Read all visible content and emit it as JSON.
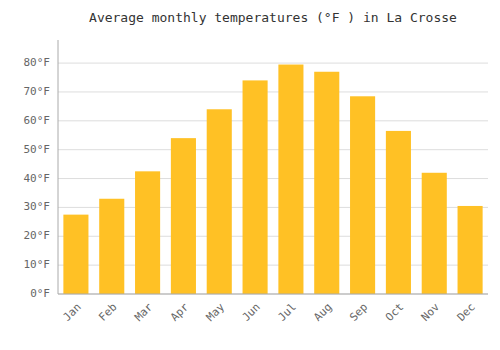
{
  "chart_data": {
    "type": "bar",
    "title": "Average monthly temperatures (°F ) in La Crosse",
    "categories": [
      "Jan",
      "Feb",
      "Mar",
      "Apr",
      "May",
      "Jun",
      "Jul",
      "Aug",
      "Sep",
      "Oct",
      "Nov",
      "Dec"
    ],
    "values": [
      27.5,
      33.0,
      42.5,
      54.0,
      64.0,
      74.0,
      79.5,
      77.0,
      68.5,
      56.5,
      42.0,
      30.5
    ],
    "color": "#FFC125",
    "ylim": [
      0,
      88
    ],
    "yticks": [
      {
        "value": 0,
        "label": "0°F"
      },
      {
        "value": 10,
        "label": "10°F"
      },
      {
        "value": 20,
        "label": "20°F"
      },
      {
        "value": 30,
        "label": "30°F"
      },
      {
        "value": 40,
        "label": "40°F"
      },
      {
        "value": 50,
        "label": "50°F"
      },
      {
        "value": 60,
        "label": "60°F"
      },
      {
        "value": 70,
        "label": "70°F"
      },
      {
        "value": 80,
        "label": "80°F"
      }
    ],
    "grid": true
  }
}
